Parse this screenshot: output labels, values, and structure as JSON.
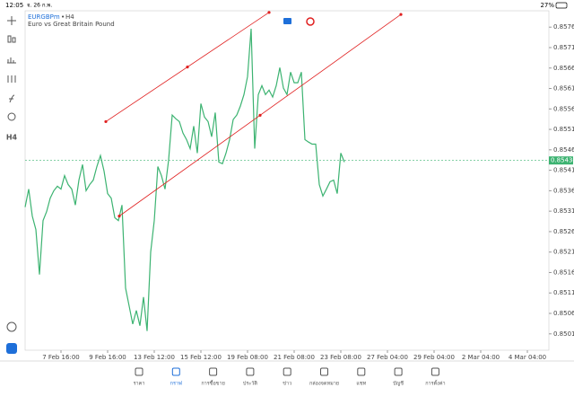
{
  "status_bar": {
    "time": "12:05",
    "date": "จ. 26 ก.พ.",
    "battery": "27%"
  },
  "toolbar": {
    "timeframe": "H4"
  },
  "chart_data": {
    "type": "line",
    "symbol": "EURGBPm",
    "timeframe": "H4",
    "subtitle": "Euro vs Great Britain Pound",
    "series": [
      {
        "color": "#3cb371",
        "values": [
          0.8532,
          0.85364,
          0.85298,
          0.85265,
          0.85155,
          0.85287,
          0.85309,
          0.85342,
          0.8536,
          0.85371,
          0.85364,
          0.85397,
          0.85375,
          0.85364,
          0.85325,
          0.85386,
          0.85424,
          0.8536,
          0.85375,
          0.85386,
          0.85419,
          0.85446,
          0.85408,
          0.85353,
          0.85342,
          0.85294,
          0.85287,
          0.85325,
          0.85122,
          0.85078,
          0.85034,
          0.85067,
          0.8503,
          0.851,
          0.85017,
          0.8521,
          0.85287,
          0.85419,
          0.85397,
          0.85364,
          0.85435,
          0.85545,
          0.85536,
          0.85529,
          0.85501,
          0.85485,
          0.85463,
          0.85518,
          0.85452,
          0.85573,
          0.8554,
          0.85529,
          0.85492,
          0.85551,
          0.8543,
          0.85426,
          0.85452,
          0.85485,
          0.85534,
          0.85545,
          0.85567,
          0.85595,
          0.85639,
          0.85756,
          0.85463,
          0.85595,
          0.85617,
          0.85595,
          0.85606,
          0.85589,
          0.85617,
          0.85661,
          0.85611,
          0.85595,
          0.8565,
          0.85624,
          0.85624,
          0.8565,
          0.85485,
          0.85479,
          0.85474,
          0.85474,
          0.85375,
          0.85347,
          0.85364,
          0.85382,
          0.85386,
          0.85353,
          0.85452,
          0.8543
        ]
      }
    ],
    "current_price": {
      "value": 0.85434,
      "color": "#3cb371"
    },
    "trendlines": [
      {
        "color": "#e02020",
        "points": [
          [
            22.5,
            0.85529
          ],
          [
            68,
            0.85796
          ]
        ]
      },
      {
        "color": "#e02020",
        "points": [
          [
            26.25,
            0.85298
          ],
          [
            104.75,
            0.85791
          ]
        ]
      }
    ],
    "xlim": [
      0,
      146
    ],
    "ylim": [
      0.8497,
      0.858
    ],
    "xticks": [
      {
        "value": 10,
        "label": "7 Feb 16:00"
      },
      {
        "value": 23,
        "label": "9 Feb 16:00"
      },
      {
        "value": 36,
        "label": "13 Feb 12:00"
      },
      {
        "value": 49,
        "label": "15 Feb 12:00"
      },
      {
        "value": 62,
        "label": "19 Feb 08:00"
      },
      {
        "value": 75,
        "label": "21 Feb 08:00"
      },
      {
        "value": 88,
        "label": "23 Feb 08:00"
      },
      {
        "value": 101,
        "label": "27 Feb 04:00"
      },
      {
        "value": 114,
        "label": "29 Feb 04:00"
      },
      {
        "value": 127,
        "label": "2 Mar 04:00"
      },
      {
        "value": 140,
        "label": "4 Mar 04:00"
      }
    ],
    "yticks": [
      {
        "value": 0.8576,
        "label": "0.85760"
      },
      0.8571,
      {
        "value": 0.8566,
        "label": "0.85660"
      },
      0.8561,
      {
        "value": 0.8556,
        "label": "0.85560"
      },
      0.8551,
      {
        "value": 0.8546,
        "label": "0.85460"
      },
      0.8541,
      {
        "value": 0.8536,
        "label": "0.85360"
      },
      0.8531,
      {
        "value": 0.8526,
        "label": "0.85260"
      },
      0.8521,
      {
        "value": 0.8516,
        "label": "0.85160"
      },
      0.8511,
      {
        "value": 0.8506,
        "label": "0.85060"
      },
      0.8501
    ]
  },
  "tabs": [
    {
      "label": "ราคา"
    },
    {
      "label": "กราฟ"
    },
    {
      "label": "การซื้อขาย"
    },
    {
      "label": "ประวัติ"
    },
    {
      "label": "ข่าว"
    },
    {
      "label": "กล่องจดหมาย"
    },
    {
      "label": "แชท"
    },
    {
      "label": "บัญชี"
    },
    {
      "label": "การตั้งค่า"
    }
  ]
}
